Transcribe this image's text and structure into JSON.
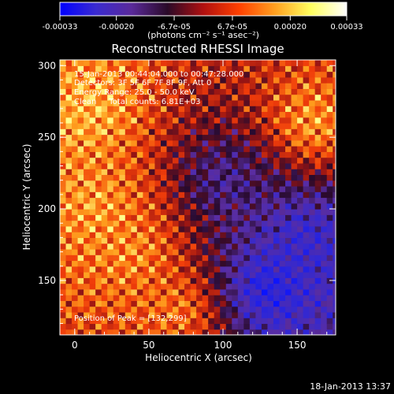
{
  "chart_data": {
    "type": "heatmap",
    "title": "Reconstructed RHESSI Image",
    "xlabel": "Heliocentric X (arcsec)",
    "ylabel": "Heliocentric Y (arcsec)",
    "xlim": [
      -10,
      176
    ],
    "ylim": [
      112,
      304
    ],
    "x_ticks": [
      0,
      50,
      100,
      150
    ],
    "y_ticks": [
      150,
      200,
      250,
      300
    ],
    "colorbar": {
      "min": -0.00033,
      "max": 0.00033,
      "tick_values": [
        -0.00033,
        -0.0002,
        -6.7e-05,
        6.7e-05,
        0.0002,
        0.00033
      ],
      "tick_labels": [
        "-0.00033",
        "-0.00020",
        "-6.7e-05",
        "6.7e-05",
        "0.00020",
        "0.00033"
      ],
      "unit_label": "(photons cm⁻² s⁻¹ asec⁻²)",
      "colors": [
        "#0000ff",
        "#3a2bd0",
        "#5a2a9a",
        "#2a0a28",
        "#b01010",
        "#ff4000",
        "#ffa020",
        "#ffff60",
        "#ffffff"
      ]
    },
    "annotations": [
      "15-Jan-2013 00:44:04.000 to 00:47:28.000",
      "Detectors: 3F 5F 6F 7F 8F 9F, Att 0",
      "Energy Range: 25.0 - 50.0 keV",
      "Clean     Total counts: 6.81E+03",
      "Position of Peak = [132,299]"
    ],
    "footer_date": "18-Jan-2013 13:37",
    "intensity_regions": [
      {
        "description": "upper-left bright",
        "x": 10,
        "y": 270,
        "level": 0.85
      },
      {
        "description": "left mid bright",
        "x": 15,
        "y": 200,
        "level": 0.8
      },
      {
        "description": "left lower bright",
        "x": 40,
        "y": 170,
        "level": 0.75
      },
      {
        "description": "upper-right bright",
        "x": 160,
        "y": 260,
        "level": 0.8
      },
      {
        "description": "bottom-middle bright",
        "x": 70,
        "y": 130,
        "level": 0.7
      },
      {
        "description": "center purple",
        "x": 100,
        "y": 220,
        "level": -0.3
      },
      {
        "description": "lower-right blue",
        "x": 130,
        "y": 145,
        "level": -0.85
      },
      {
        "description": "right blue",
        "x": 155,
        "y": 180,
        "level": -0.6
      }
    ]
  }
}
